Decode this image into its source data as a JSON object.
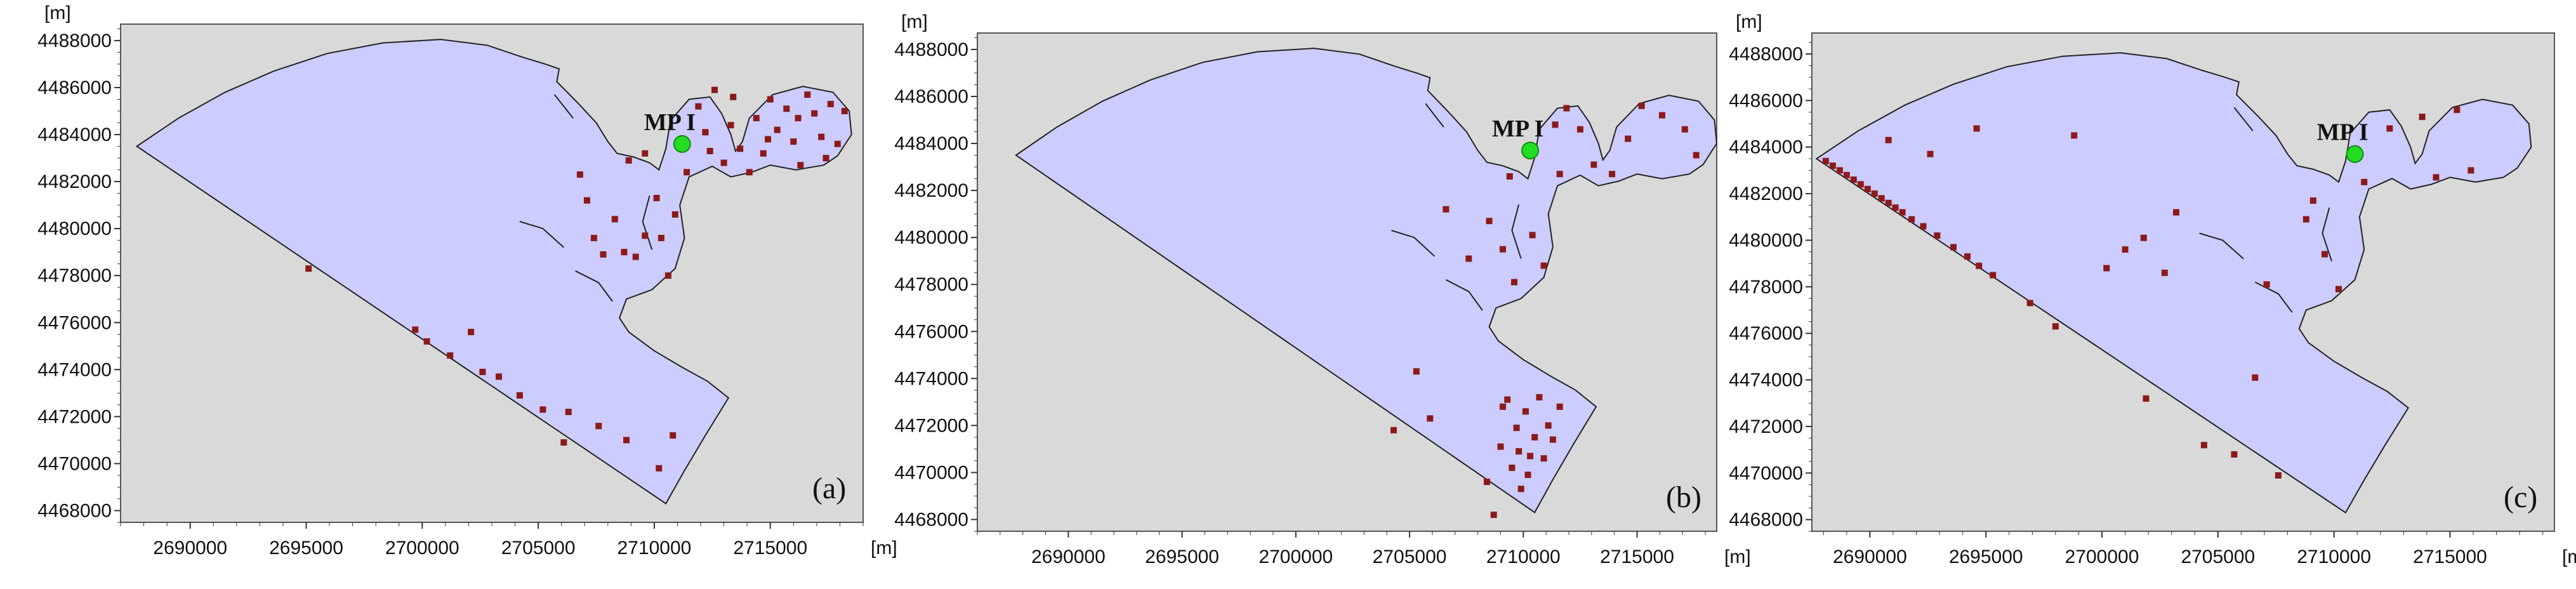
{
  "colors": {
    "plot_background": "#d9d9d9",
    "domain_fill": "#ccccff",
    "domain_outline": "#222222",
    "particle": "#8b1a1a",
    "station_marker": "#22dd22"
  },
  "chart_data": [
    {
      "type": "scatter",
      "panel": "(a)",
      "x_unit": "[m]",
      "y_unit": "[m]",
      "xlim": [
        2687000,
        2719000
      ],
      "ylim": [
        4467500,
        4488700
      ],
      "x_ticks": [
        "2690000",
        "2695000",
        "2700000",
        "2705000",
        "2710000",
        "2715000"
      ],
      "y_ticks": [
        "4468000",
        "4470000",
        "4472000",
        "4474000",
        "4476000",
        "4478000",
        "4480000",
        "4482000",
        "4484000",
        "4486000",
        "4488000"
      ],
      "station": {
        "label": "MP I",
        "x": 2711200,
        "y": 4483600
      },
      "points": [
        [
          2695100,
          4478300
        ],
        [
          2699700,
          4475700
        ],
        [
          2700200,
          4475200
        ],
        [
          2701200,
          4474600
        ],
        [
          2702100,
          4475600
        ],
        [
          2702600,
          4473900
        ],
        [
          2703300,
          4473700
        ],
        [
          2704200,
          4472900
        ],
        [
          2705200,
          4472300
        ],
        [
          2706100,
          4470900
        ],
        [
          2706300,
          4472200
        ],
        [
          2707600,
          4471600
        ],
        [
          2708800,
          4471000
        ],
        [
          2710200,
          4469800
        ],
        [
          2710800,
          4471200
        ],
        [
          2706800,
          4482300
        ],
        [
          2707100,
          4481200
        ],
        [
          2707400,
          4479600
        ],
        [
          2707800,
          4478900
        ],
        [
          2708300,
          4480400
        ],
        [
          2708700,
          4479000
        ],
        [
          2709200,
          4478800
        ],
        [
          2709600,
          4479700
        ],
        [
          2710100,
          4481300
        ],
        [
          2710300,
          4479600
        ],
        [
          2710600,
          4478000
        ],
        [
          2710900,
          4480600
        ],
        [
          2711400,
          4482400
        ],
        [
          2708900,
          4482900
        ],
        [
          2709600,
          4483200
        ],
        [
          2711900,
          4485200
        ],
        [
          2712200,
          4484100
        ],
        [
          2712400,
          4483300
        ],
        [
          2712600,
          4485900
        ],
        [
          2713000,
          4482800
        ],
        [
          2713300,
          4484400
        ],
        [
          2713700,
          4483400
        ],
        [
          2714100,
          4482400
        ],
        [
          2714400,
          4484700
        ],
        [
          2714700,
          4483200
        ],
        [
          2715000,
          4485500
        ],
        [
          2715300,
          4484200
        ],
        [
          2715700,
          4485100
        ],
        [
          2716000,
          4483700
        ],
        [
          2716300,
          4482700
        ],
        [
          2716600,
          4485700
        ],
        [
          2716900,
          4484900
        ],
        [
          2717200,
          4483900
        ],
        [
          2717600,
          4485300
        ],
        [
          2717900,
          4483600
        ],
        [
          2718200,
          4485000
        ],
        [
          2713400,
          4485600
        ],
        [
          2714900,
          4483800
        ],
        [
          2716200,
          4484700
        ],
        [
          2717400,
          4483000
        ]
      ]
    },
    {
      "type": "scatter",
      "panel": "(b)",
      "x_unit": "[m]",
      "y_unit": "[m]",
      "xlim": [
        2686000,
        2718500
      ],
      "ylim": [
        4467500,
        4488700
      ],
      "x_ticks": [
        "2690000",
        "2695000",
        "2700000",
        "2705000",
        "2710000",
        "2715000"
      ],
      "y_ticks": [
        "4468000",
        "4470000",
        "4472000",
        "4474000",
        "4476000",
        "4478000",
        "4480000",
        "4482000",
        "4484000",
        "4486000",
        "4488000"
      ],
      "station": {
        "label": "MP I",
        "x": 2710300,
        "y": 4483700
      },
      "points": [
        [
          2704300,
          4471800
        ],
        [
          2705300,
          4474300
        ],
        [
          2705900,
          4472300
        ],
        [
          2708400,
          4469600
        ],
        [
          2708700,
          4468200
        ],
        [
          2709000,
          4471100
        ],
        [
          2709300,
          4473100
        ],
        [
          2709500,
          4470200
        ],
        [
          2709700,
          4471900
        ],
        [
          2709900,
          4469300
        ],
        [
          2710100,
          4472600
        ],
        [
          2710300,
          4470700
        ],
        [
          2710500,
          4471500
        ],
        [
          2710700,
          4473200
        ],
        [
          2710900,
          4470600
        ],
        [
          2711100,
          4472000
        ],
        [
          2711300,
          4471400
        ],
        [
          2711600,
          4472800
        ],
        [
          2709100,
          4472800
        ],
        [
          2709800,
          4470900
        ],
        [
          2710200,
          4469900
        ],
        [
          2706600,
          4481200
        ],
        [
          2707600,
          4479100
        ],
        [
          2708500,
          4480700
        ],
        [
          2709100,
          4479500
        ],
        [
          2709600,
          4478100
        ],
        [
          2710400,
          4480100
        ],
        [
          2710900,
          4478800
        ],
        [
          2709400,
          4482600
        ],
        [
          2711600,
          4482700
        ],
        [
          2711900,
          4485500
        ],
        [
          2712500,
          4484600
        ],
        [
          2713100,
          4483100
        ],
        [
          2713900,
          4482700
        ],
        [
          2714600,
          4484200
        ],
        [
          2715200,
          4485600
        ],
        [
          2716100,
          4485200
        ],
        [
          2717100,
          4484600
        ],
        [
          2717600,
          4483500
        ],
        [
          2711400,
          4484800
        ]
      ]
    },
    {
      "type": "scatter",
      "panel": "(c)",
      "x_unit": "[m]",
      "y_unit": "[m]",
      "xlim": [
        2687500,
        2719500
      ],
      "ylim": [
        4467500,
        4488900
      ],
      "x_ticks": [
        "2690000",
        "2695000",
        "2700000",
        "2705000",
        "2710000",
        "2715000"
      ],
      "y_ticks": [
        "4468000",
        "4470000",
        "4472000",
        "4474000",
        "4476000",
        "4478000",
        "4480000",
        "4482000",
        "4484000",
        "4486000",
        "4488000"
      ],
      "station": {
        "label": "MP I",
        "x": 2710900,
        "y": 4483700
      },
      "points": [
        [
          2688100,
          4483400
        ],
        [
          2688400,
          4483200
        ],
        [
          2688700,
          4483000
        ],
        [
          2689000,
          4482800
        ],
        [
          2689300,
          4482600
        ],
        [
          2689600,
          4482400
        ],
        [
          2689900,
          4482200
        ],
        [
          2690200,
          4482000
        ],
        [
          2690500,
          4481800
        ],
        [
          2690800,
          4481600
        ],
        [
          2691100,
          4481400
        ],
        [
          2691400,
          4481200
        ],
        [
          2691800,
          4480900
        ],
        [
          2692300,
          4480600
        ],
        [
          2692900,
          4480200
        ],
        [
          2693600,
          4479700
        ],
        [
          2694200,
          4479300
        ],
        [
          2694700,
          4478900
        ],
        [
          2695300,
          4478500
        ],
        [
          2696900,
          4477300
        ],
        [
          2698000,
          4476300
        ],
        [
          2701900,
          4473200
        ],
        [
          2704400,
          4471200
        ],
        [
          2705700,
          4470800
        ],
        [
          2707600,
          4469900
        ],
        [
          2690800,
          4484300
        ],
        [
          2692600,
          4483700
        ],
        [
          2694600,
          4484800
        ],
        [
          2698800,
          4484500
        ],
        [
          2700200,
          4478800
        ],
        [
          2701800,
          4480100
        ],
        [
          2703200,
          4481200
        ],
        [
          2707100,
          4478100
        ],
        [
          2708800,
          4480900
        ],
        [
          2709100,
          4481700
        ],
        [
          2710200,
          4477900
        ],
        [
          2711300,
          4482500
        ],
        [
          2712400,
          4484800
        ],
        [
          2713800,
          4485300
        ],
        [
          2715300,
          4485600
        ],
        [
          2715900,
          4483000
        ],
        [
          2714400,
          4482700
        ],
        [
          2709600,
          4479400
        ],
        [
          2701000,
          4479600
        ],
        [
          2706600,
          4474100
        ],
        [
          2702700,
          4478600
        ]
      ]
    }
  ]
}
